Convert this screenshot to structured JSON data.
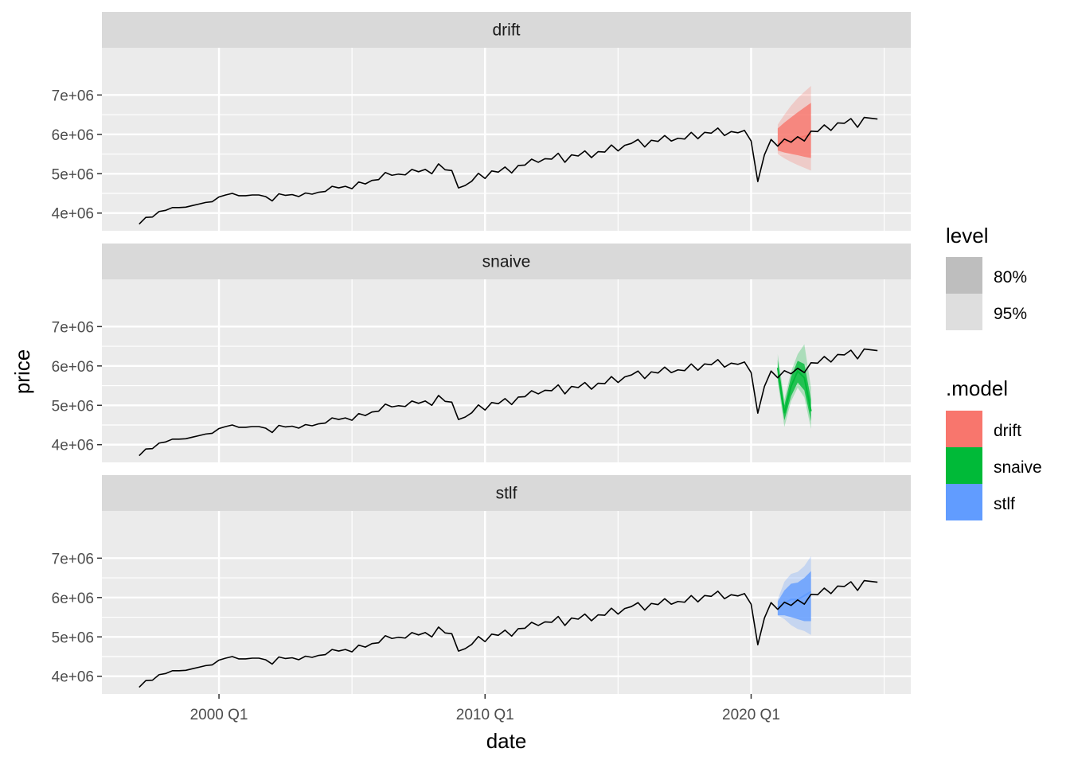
{
  "chart_data": {
    "type": "line",
    "facets": [
      {
        "name": "drift",
        "fill_color": "#F8766D"
      },
      {
        "name": "snaive",
        "fill_color": "#00BA38"
      },
      {
        "name": "stlf",
        "fill_color": "#619CFF"
      }
    ],
    "xlabel": "date",
    "ylabel": "price",
    "x_ticks": [
      {
        "value": 2000.0,
        "label": "2000 Q1"
      },
      {
        "value": 2010.0,
        "label": "2010 Q1"
      },
      {
        "value": 2020.0,
        "label": "2020 Q1"
      }
    ],
    "x_minor_ticks": [
      2005.0,
      2015.0,
      2025.0
    ],
    "xlim": [
      1995.6,
      2026.0
    ],
    "y_ticks": [
      {
        "value": 4000000,
        "label": "4e+06"
      },
      {
        "value": 5000000,
        "label": "5e+06"
      },
      {
        "value": 6000000,
        "label": "6e+06"
      },
      {
        "value": 7000000,
        "label": "7e+06"
      }
    ],
    "y_minor_ticks": [
      4500000,
      5500000,
      6500000
    ],
    "ylim": [
      3550000,
      8200000
    ],
    "grid": true,
    "series": [
      {
        "name": "price",
        "x": [
          1997.0,
          1997.25,
          1997.5,
          1997.75,
          1998.0,
          1998.25,
          1998.5,
          1998.75,
          1999.0,
          1999.25,
          1999.5,
          1999.75,
          2000.0,
          2000.25,
          2000.5,
          2000.75,
          2001.0,
          2001.25,
          2001.5,
          2001.75,
          2002.0,
          2002.25,
          2002.5,
          2002.75,
          2003.0,
          2003.25,
          2003.5,
          2003.75,
          2004.0,
          2004.25,
          2004.5,
          2004.75,
          2005.0,
          2005.25,
          2005.5,
          2005.75,
          2006.0,
          2006.25,
          2006.5,
          2006.75,
          2007.0,
          2007.25,
          2007.5,
          2007.75,
          2008.0,
          2008.25,
          2008.5,
          2008.75,
          2009.0,
          2009.25,
          2009.5,
          2009.75,
          2010.0,
          2010.25,
          2010.5,
          2010.75,
          2011.0,
          2011.25,
          2011.5,
          2011.75,
          2012.0,
          2012.25,
          2012.5,
          2012.75,
          2013.0,
          2013.25,
          2013.5,
          2013.75,
          2014.0,
          2014.25,
          2014.5,
          2014.75,
          2015.0,
          2015.25,
          2015.5,
          2015.75,
          2016.0,
          2016.25,
          2016.5,
          2016.75,
          2017.0,
          2017.25,
          2017.5,
          2017.75,
          2018.0,
          2018.25,
          2018.5,
          2018.75,
          2019.0,
          2019.25,
          2019.5,
          2019.75,
          2020.0,
          2020.25,
          2020.5,
          2020.75,
          2021.0,
          2021.25,
          2021.5,
          2021.75,
          2022.0,
          2022.25,
          2022.5,
          2022.75,
          2023.0,
          2023.25,
          2023.5,
          2023.75,
          2024.0,
          2024.25,
          2024.5,
          2024.75
        ],
        "values": [
          3720000,
          3890000,
          3900000,
          4040000,
          4070000,
          4140000,
          4140000,
          4150000,
          4190000,
          4230000,
          4270000,
          4290000,
          4410000,
          4460000,
          4500000,
          4440000,
          4440000,
          4460000,
          4460000,
          4420000,
          4310000,
          4490000,
          4450000,
          4470000,
          4420000,
          4510000,
          4480000,
          4530000,
          4550000,
          4680000,
          4640000,
          4680000,
          4620000,
          4790000,
          4740000,
          4830000,
          4850000,
          5030000,
          4960000,
          4990000,
          4970000,
          5110000,
          5050000,
          5110000,
          5000000,
          5250000,
          5100000,
          5080000,
          4640000,
          4700000,
          4810000,
          5010000,
          4880000,
          5070000,
          5040000,
          5170000,
          5020000,
          5210000,
          5220000,
          5370000,
          5290000,
          5380000,
          5370000,
          5520000,
          5290000,
          5480000,
          5450000,
          5580000,
          5410000,
          5560000,
          5550000,
          5730000,
          5580000,
          5720000,
          5770000,
          5870000,
          5680000,
          5850000,
          5820000,
          5970000,
          5830000,
          5900000,
          5880000,
          6050000,
          5890000,
          6050000,
          6030000,
          6160000,
          5970000,
          6070000,
          6040000,
          6100000,
          5830000,
          4800000,
          5480000,
          5870000,
          5700000,
          5880000,
          5800000,
          5940000,
          5830000,
          6080000,
          6070000,
          6240000,
          6100000,
          6290000,
          6280000,
          6400000,
          6180000,
          6430000,
          6410000,
          6390000
        ]
      }
    ],
    "forecasts": {
      "x": [
        2021.0,
        2021.25,
        2021.5,
        2021.75,
        2022.0,
        2022.25
      ],
      "drift": {
        "mean": [
          5750000,
          5800000,
          5850000,
          5900000,
          5950000,
          6000000
        ],
        "lo80": [
          5590000,
          5540000,
          5500000,
          5470000,
          5430000,
          5400000
        ],
        "hi80": [
          6150000,
          6300000,
          6430000,
          6560000,
          6680000,
          6800000
        ],
        "lo95": [
          5500000,
          5390000,
          5300000,
          5220000,
          5150000,
          5080000
        ],
        "hi95": [
          6250000,
          6500000,
          6730000,
          6920000,
          7080000,
          7230000
        ]
      },
      "snaive": {
        "mean": [
          5950000,
          4800000,
          5480000,
          5870000,
          5700000,
          4850000
        ],
        "lo80": [
          5700000,
          4620000,
          5230000,
          5580000,
          5380000,
          4600000
        ],
        "hi80": [
          6150000,
          5000000,
          5720000,
          6130000,
          6050000,
          5150000
        ],
        "lo95": [
          5600000,
          4450000,
          5100000,
          5450000,
          5200000,
          4400000
        ],
        "hi95": [
          6300000,
          5150000,
          5850000,
          6300000,
          6550000,
          5450000
        ]
      },
      "stlf": {
        "mean": [
          5750000,
          5860000,
          5950000,
          5950000,
          6050000,
          6150000
        ],
        "lo80": [
          5550000,
          5550000,
          5500000,
          5450000,
          5400000,
          5400000
        ],
        "hi80": [
          5900000,
          6180000,
          6350000,
          6380000,
          6500000,
          6670000
        ],
        "lo95": [
          5550000,
          5450000,
          5300000,
          5200000,
          5150000,
          5050000
        ],
        "hi95": [
          5950000,
          6400000,
          6600000,
          6650000,
          6800000,
          7050000
        ]
      }
    },
    "legend": {
      "position": "right",
      "level": {
        "title": "level",
        "items": [
          {
            "label": "80%",
            "color": "#BEBEBE"
          },
          {
            "label": "95%",
            "color": "#DEDEDE"
          }
        ]
      },
      "model": {
        "title": ".model",
        "items": [
          {
            "label": "drift",
            "color": "#F8766D"
          },
          {
            "label": "snaive",
            "color": "#00BA38"
          },
          {
            "label": "stlf",
            "color": "#619CFF"
          }
        ]
      }
    }
  }
}
